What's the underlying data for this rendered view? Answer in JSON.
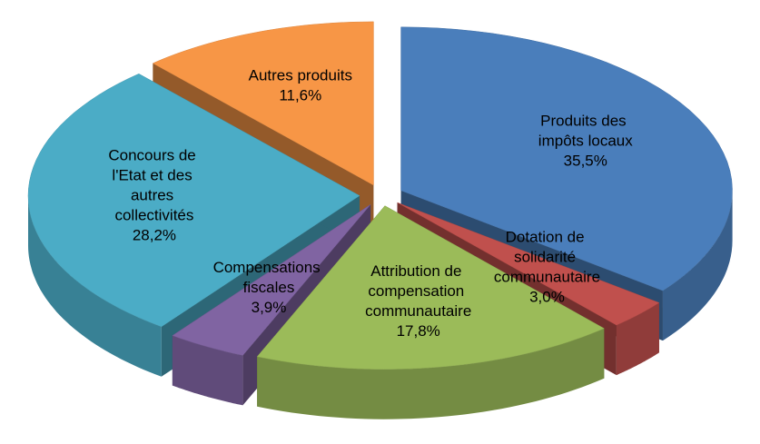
{
  "chart_data": {
    "type": "pie3d",
    "categories": [
      "Produits des impôts locaux",
      "Dotation de solidarité communautaire",
      "Attribution de compensation communautaire",
      "Compensations fiscales",
      "Concours de l'Etat et des autres collectivités",
      "Autres produits"
    ],
    "values": [
      35.5,
      3.0,
      17.8,
      3.9,
      28.2,
      11.6
    ],
    "value_labels": [
      "35,5%",
      "3,0%",
      "17,8%",
      "3,9%",
      "28,2%",
      "11,6%"
    ],
    "colors": [
      "#4a7ebb",
      "#c0504d",
      "#9bbb59",
      "#8064a2",
      "#4bacc6",
      "#f79646"
    ]
  }
}
